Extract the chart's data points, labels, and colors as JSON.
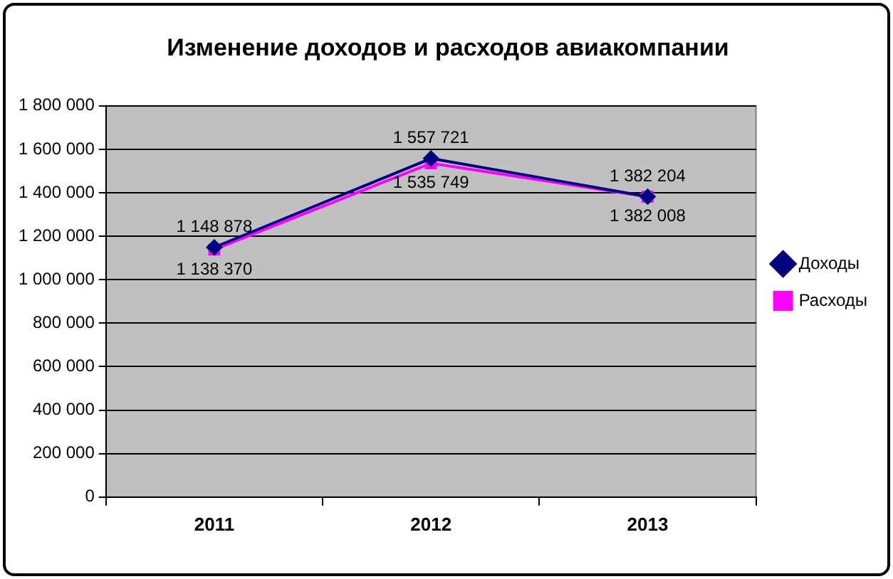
{
  "chart_data": {
    "type": "line",
    "title": "Изменение доходов и расходов авиакомпании",
    "categories": [
      "2011",
      "2012",
      "2013"
    ],
    "series": [
      {
        "name": "Доходы",
        "color": "#000080",
        "marker": "diamond",
        "values": [
          1148878,
          1557721,
          1382204
        ],
        "value_labels": [
          "1 148 878",
          "1 557 721",
          "1 382 204"
        ]
      },
      {
        "name": "Расходы",
        "color": "#ff00ff",
        "marker": "square",
        "values": [
          1138370,
          1535749,
          1382008
        ],
        "value_labels": [
          "1 138 370",
          "1 535 749",
          "1 382 008"
        ]
      }
    ],
    "ylim": [
      0,
      1800000
    ],
    "yticks": [
      {
        "value": 0,
        "label": "0"
      },
      {
        "value": 200000,
        "label": "200 000"
      },
      {
        "value": 400000,
        "label": "400 000"
      },
      {
        "value": 600000,
        "label": "600 000"
      },
      {
        "value": 800000,
        "label": "800 000"
      },
      {
        "value": 1000000,
        "label": "1 000 000"
      },
      {
        "value": 1200000,
        "label": "1 200 000"
      },
      {
        "value": 1400000,
        "label": "1 400 000"
      },
      {
        "value": 1600000,
        "label": "1 600 000"
      },
      {
        "value": 1800000,
        "label": "1 800 000"
      }
    ],
    "grid": "y",
    "legend": "right",
    "line_style": "solid"
  }
}
